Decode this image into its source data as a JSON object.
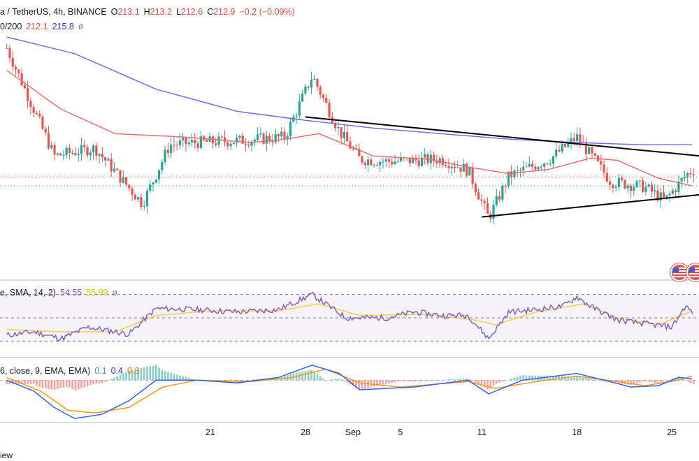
{
  "header": {
    "symbol": "a / TetherUS, 4h, BINANCE",
    "ohlc": [
      {
        "label": "O",
        "value": "213.1"
      },
      {
        "label": "H",
        "value": "213.2"
      },
      {
        "label": "L",
        "value": "212.6"
      },
      {
        "label": "C",
        "value": "212.9"
      }
    ],
    "change": "−0.2 (−0.09%)",
    "ma_label": "0/200",
    "ma_values": [
      "212.1",
      "215.8"
    ],
    "ma_extra": "ø"
  },
  "rsi_legend": {
    "label": "e, SMA, 14, 2)",
    "values": [
      "54.55",
      "55.99"
    ],
    "extra": "ø"
  },
  "macd_legend": {
    "label": "6, close, 9, EMA, EMA)",
    "values": [
      "0.1",
      "0.4",
      "0.3"
    ]
  },
  "x_axis": {
    "ticks": [
      {
        "label": "21",
        "pos": 28.0
      },
      {
        "label": "28",
        "pos": 35.0
      },
      {
        "label": "Sep",
        "pos": 38.5
      },
      {
        "label": "5",
        "pos": 42.0
      },
      {
        "label": "11",
        "pos": 48.0
      },
      {
        "label": "18",
        "pos": 55.0
      },
      {
        "label": "25",
        "pos": 62.0
      }
    ]
  },
  "footer": {
    "text": "iew"
  },
  "colors": {
    "up": "#26a69a",
    "down": "#ef5350",
    "ma_fast": "#ef6c6c",
    "ma_slow": "#6f6ff0",
    "rsi_line": "#7e57c2",
    "rsi_ma": "#f4d03f",
    "macd_line": "#2962ff",
    "signal_line": "#ff9800",
    "trendline": "#000000"
  },
  "chart_data": {
    "type": "candlestick",
    "y_range_estimate": [
      204,
      226
    ],
    "price_anchor_points": [
      {
        "x": 13.0,
        "price": 224.5
      },
      {
        "x": 16.5,
        "price": 214.8
      },
      {
        "x": 19.5,
        "price": 215.5
      },
      {
        "x": 23.0,
        "price": 210.5
      },
      {
        "x": 25.0,
        "price": 215.8
      },
      {
        "x": 27.0,
        "price": 216.0
      },
      {
        "x": 30.5,
        "price": 216.2
      },
      {
        "x": 33.5,
        "price": 216.5
      },
      {
        "x": 35.5,
        "price": 222.0
      },
      {
        "x": 37.5,
        "price": 217.0
      },
      {
        "x": 39.0,
        "price": 214.5
      },
      {
        "x": 41.0,
        "price": 214.3
      },
      {
        "x": 45.0,
        "price": 214.5
      },
      {
        "x": 47.0,
        "price": 213.5
      },
      {
        "x": 48.5,
        "price": 209.2
      },
      {
        "x": 50.0,
        "price": 213.0
      },
      {
        "x": 53.0,
        "price": 214.5
      },
      {
        "x": 55.0,
        "price": 216.5
      },
      {
        "x": 57.5,
        "price": 212.5
      },
      {
        "x": 60.0,
        "price": 212.0
      },
      {
        "x": 61.5,
        "price": 210.8
      },
      {
        "x": 63.0,
        "price": 213.0
      },
      {
        "x": 63.5,
        "price": 213.5
      }
    ],
    "ma50_points": [
      {
        "x": 13.0,
        "price": 222.5
      },
      {
        "x": 17.0,
        "price": 219.0
      },
      {
        "x": 21.0,
        "price": 216.8
      },
      {
        "x": 26.0,
        "price": 216.5
      },
      {
        "x": 31.0,
        "price": 216.0
      },
      {
        "x": 33.5,
        "price": 216.3
      },
      {
        "x": 36.0,
        "price": 216.8
      },
      {
        "x": 40.0,
        "price": 214.8
      },
      {
        "x": 44.0,
        "price": 214.5
      },
      {
        "x": 47.0,
        "price": 213.8
      },
      {
        "x": 50.0,
        "price": 213.2
      },
      {
        "x": 53.0,
        "price": 213.6
      },
      {
        "x": 56.0,
        "price": 214.6
      },
      {
        "x": 58.0,
        "price": 214.4
      },
      {
        "x": 61.0,
        "price": 212.8
      },
      {
        "x": 63.5,
        "price": 212.1
      }
    ],
    "ma200_points": [
      {
        "x": 13.0,
        "price": 225.5
      },
      {
        "x": 18.0,
        "price": 224.0
      },
      {
        "x": 24.0,
        "price": 220.8
      },
      {
        "x": 30.0,
        "price": 218.8
      },
      {
        "x": 35.0,
        "price": 218.0
      },
      {
        "x": 40.0,
        "price": 217.3
      },
      {
        "x": 45.0,
        "price": 216.8
      },
      {
        "x": 50.0,
        "price": 216.3
      },
      {
        "x": 55.0,
        "price": 216.0
      },
      {
        "x": 60.0,
        "price": 215.8
      },
      {
        "x": 63.5,
        "price": 215.8
      }
    ],
    "rsi_points": [
      {
        "x": 13.0,
        "value": 35
      },
      {
        "x": 15.0,
        "value": 38
      },
      {
        "x": 17.0,
        "value": 32
      },
      {
        "x": 19.0,
        "value": 42
      },
      {
        "x": 22.0,
        "value": 36
      },
      {
        "x": 24.0,
        "value": 58
      },
      {
        "x": 27.0,
        "value": 57
      },
      {
        "x": 30.0,
        "value": 55
      },
      {
        "x": 33.0,
        "value": 57
      },
      {
        "x": 35.5,
        "value": 70
      },
      {
        "x": 37.0,
        "value": 58
      },
      {
        "x": 38.0,
        "value": 50
      },
      {
        "x": 41.0,
        "value": 50
      },
      {
        "x": 43.0,
        "value": 55
      },
      {
        "x": 45.0,
        "value": 52
      },
      {
        "x": 47.0,
        "value": 52
      },
      {
        "x": 48.5,
        "value": 32
      },
      {
        "x": 50.0,
        "value": 55
      },
      {
        "x": 52.0,
        "value": 57
      },
      {
        "x": 54.0,
        "value": 60
      },
      {
        "x": 55.0,
        "value": 68
      },
      {
        "x": 56.0,
        "value": 60
      },
      {
        "x": 58.0,
        "value": 48
      },
      {
        "x": 60.0,
        "value": 45
      },
      {
        "x": 62.0,
        "value": 42
      },
      {
        "x": 63.0,
        "value": 60
      },
      {
        "x": 63.5,
        "value": 55
      }
    ],
    "rsi_ma_points": [
      {
        "x": 13.0,
        "value": 40
      },
      {
        "x": 17.0,
        "value": 38
      },
      {
        "x": 21.0,
        "value": 38
      },
      {
        "x": 24.0,
        "value": 52
      },
      {
        "x": 28.0,
        "value": 56
      },
      {
        "x": 33.0,
        "value": 56
      },
      {
        "x": 36.0,
        "value": 62
      },
      {
        "x": 39.0,
        "value": 52
      },
      {
        "x": 44.0,
        "value": 53
      },
      {
        "x": 47.5,
        "value": 48
      },
      {
        "x": 49.0,
        "value": 44
      },
      {
        "x": 52.0,
        "value": 55
      },
      {
        "x": 55.5,
        "value": 62
      },
      {
        "x": 58.0,
        "value": 50
      },
      {
        "x": 61.0,
        "value": 44
      },
      {
        "x": 63.5,
        "value": 56
      }
    ],
    "rsi_bands": [
      30,
      50,
      70
    ],
    "macd_points": [
      {
        "x": 13.0,
        "value": 0.0
      },
      {
        "x": 15.0,
        "value": -0.8
      },
      {
        "x": 16.5,
        "value": -2.0
      },
      {
        "x": 18.0,
        "value": -2.8
      },
      {
        "x": 20.0,
        "value": -2.5
      },
      {
        "x": 22.0,
        "value": -1.5
      },
      {
        "x": 24.0,
        "value": 0.0
      },
      {
        "x": 27.0,
        "value": 0.0
      },
      {
        "x": 30.0,
        "value": -0.2
      },
      {
        "x": 33.0,
        "value": 0.2
      },
      {
        "x": 35.5,
        "value": 1.1
      },
      {
        "x": 37.5,
        "value": 0.5
      },
      {
        "x": 39.0,
        "value": -0.7
      },
      {
        "x": 43.0,
        "value": -0.5
      },
      {
        "x": 47.0,
        "value": 0.0
      },
      {
        "x": 48.5,
        "value": -1.0
      },
      {
        "x": 51.0,
        "value": 0.0
      },
      {
        "x": 55.0,
        "value": 0.5
      },
      {
        "x": 57.0,
        "value": 0.0
      },
      {
        "x": 59.0,
        "value": -0.5
      },
      {
        "x": 61.0,
        "value": -0.4
      },
      {
        "x": 62.5,
        "value": 0.2
      },
      {
        "x": 63.5,
        "value": 0.1
      }
    ],
    "signal_points": [
      {
        "x": 13.0,
        "value": 0.2
      },
      {
        "x": 15.5,
        "value": -0.8
      },
      {
        "x": 17.5,
        "value": -2.2
      },
      {
        "x": 19.5,
        "value": -2.4
      },
      {
        "x": 22.0,
        "value": -2.0
      },
      {
        "x": 24.5,
        "value": -0.5
      },
      {
        "x": 27.0,
        "value": 0.0
      },
      {
        "x": 31.0,
        "value": -0.1
      },
      {
        "x": 34.0,
        "value": 0.2
      },
      {
        "x": 36.5,
        "value": 0.8
      },
      {
        "x": 39.0,
        "value": -0.2
      },
      {
        "x": 42.0,
        "value": -0.5
      },
      {
        "x": 47.0,
        "value": -0.1
      },
      {
        "x": 49.0,
        "value": -0.6
      },
      {
        "x": 52.0,
        "value": -0.1
      },
      {
        "x": 55.0,
        "value": 0.3
      },
      {
        "x": 58.0,
        "value": -0.1
      },
      {
        "x": 60.0,
        "value": -0.4
      },
      {
        "x": 62.5,
        "value": 0.0
      },
      {
        "x": 63.5,
        "value": 0.3
      }
    ],
    "macd_range": [
      -3.0,
      1.5
    ],
    "x_range": [
      12.5,
      64.0
    ],
    "trendlines": [
      {
        "from": {
          "x": 35.0,
          "price": 218.3
        },
        "to": {
          "x": 64.0,
          "price": 214.8
        }
      },
      {
        "from": {
          "x": 48.0,
          "price": 209.3
        },
        "to": {
          "x": 64.0,
          "price": 211.3
        }
      }
    ]
  }
}
